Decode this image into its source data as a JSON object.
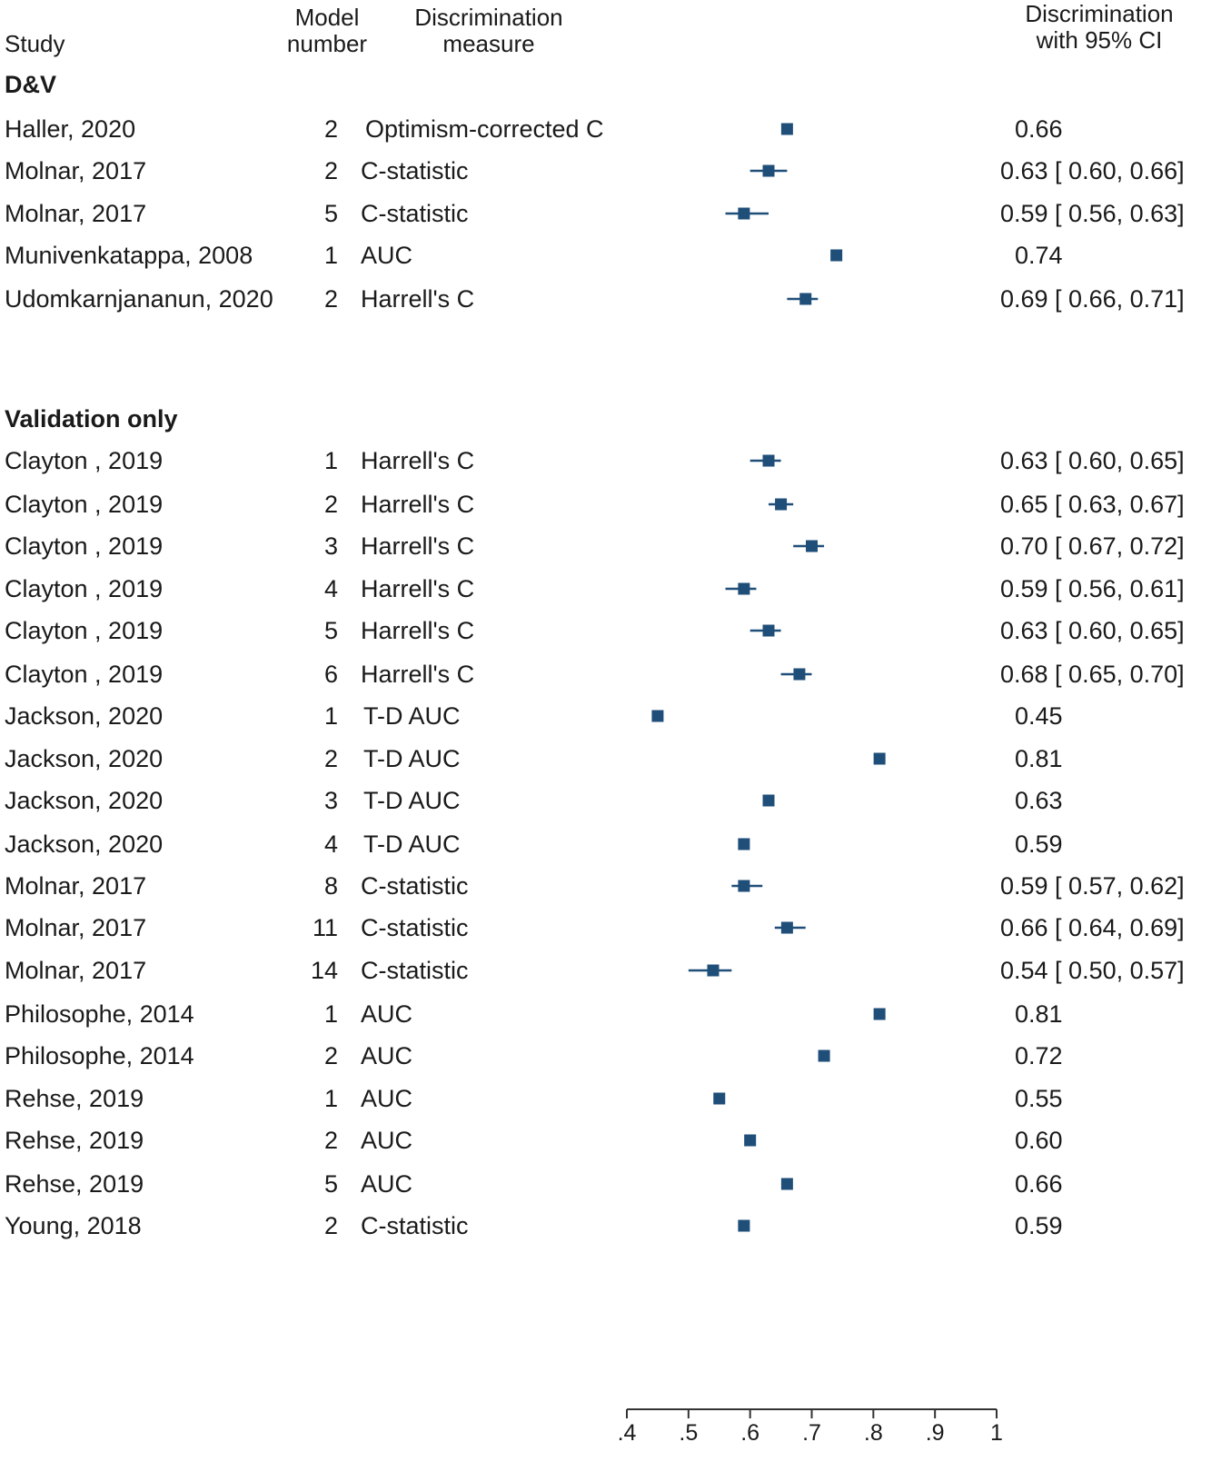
{
  "headers": {
    "study": "Study",
    "model_line1": "Model",
    "model_line2": "number",
    "measure_line1": "Discrimination",
    "measure_line2": "measure",
    "ci_line1": "Discrimination",
    "ci_line2": "with 95% CI"
  },
  "colors": {
    "marker": "#1f4e79",
    "text": "#1a1a1a",
    "axis": "#333333"
  },
  "chart_data": {
    "type": "forest",
    "xlim": [
      0.4,
      1.0
    ],
    "xticks": [
      0.4,
      0.5,
      0.6,
      0.7,
      0.8,
      0.9,
      1.0
    ],
    "xtick_labels": [
      ".4",
      ".5",
      ".6",
      ".7",
      ".8",
      ".9",
      "1"
    ],
    "groups": [
      {
        "label": "D&V",
        "rows": [
          {
            "study": "Haller, 2020",
            "model": "2",
            "measure": "Optimism-corrected C",
            "est": 0.66,
            "lo": null,
            "hi": null,
            "text": "0.66"
          },
          {
            "study": "Molnar, 2017",
            "model": "2",
            "measure": "C-statistic",
            "est": 0.63,
            "lo": 0.6,
            "hi": 0.66,
            "text": "0.63 [ 0.60,  0.66]"
          },
          {
            "study": "Molnar, 2017",
            "model": "5",
            "measure": "C-statistic",
            "est": 0.59,
            "lo": 0.56,
            "hi": 0.63,
            "text": "0.59 [ 0.56,  0.63]"
          },
          {
            "study": "Munivenkatappa, 2008",
            "model": "1",
            "measure": "AUC",
            "est": 0.74,
            "lo": null,
            "hi": null,
            "text": "0.74"
          },
          {
            "study": "Udomkarnjananun, 2020",
            "model": "2",
            "measure": "Harrell's C",
            "est": 0.69,
            "lo": 0.66,
            "hi": 0.71,
            "text": "0.69 [ 0.66,  0.71]"
          }
        ]
      },
      {
        "label": "Validation only",
        "rows": [
          {
            "study": "Clayton , 2019",
            "model": "1",
            "measure": "Harrell's C",
            "est": 0.63,
            "lo": 0.6,
            "hi": 0.65,
            "text": "0.63 [ 0.60,  0.65]"
          },
          {
            "study": "Clayton , 2019",
            "model": "2",
            "measure": "Harrell's C",
            "est": 0.65,
            "lo": 0.63,
            "hi": 0.67,
            "text": "0.65 [ 0.63,  0.67]"
          },
          {
            "study": "Clayton , 2019",
            "model": "3",
            "measure": "Harrell's C",
            "est": 0.7,
            "lo": 0.67,
            "hi": 0.72,
            "text": "0.70 [ 0.67,  0.72]"
          },
          {
            "study": "Clayton , 2019",
            "model": "4",
            "measure": "Harrell's C",
            "est": 0.59,
            "lo": 0.56,
            "hi": 0.61,
            "text": "0.59 [ 0.56,  0.61]"
          },
          {
            "study": "Clayton , 2019",
            "model": "5",
            "measure": "Harrell's C",
            "est": 0.63,
            "lo": 0.6,
            "hi": 0.65,
            "text": "0.63 [ 0.60,  0.65]"
          },
          {
            "study": "Clayton , 2019",
            "model": "6",
            "measure": "Harrell's C",
            "est": 0.68,
            "lo": 0.65,
            "hi": 0.7,
            "text": "0.68 [ 0.65,  0.70]"
          },
          {
            "study": "Jackson, 2020",
            "model": "1",
            "measure": "T-D AUC",
            "est": 0.45,
            "lo": null,
            "hi": null,
            "text": "0.45"
          },
          {
            "study": "Jackson, 2020",
            "model": "2",
            "measure": "T-D AUC",
            "est": 0.81,
            "lo": null,
            "hi": null,
            "text": "0.81"
          },
          {
            "study": "Jackson, 2020",
            "model": "3",
            "measure": "T-D AUC",
            "est": 0.63,
            "lo": null,
            "hi": null,
            "text": "0.63"
          },
          {
            "study": "Jackson, 2020",
            "model": "4",
            "measure": "T-D AUC",
            "est": 0.59,
            "lo": null,
            "hi": null,
            "text": "0.59"
          },
          {
            "study": "Molnar, 2017",
            "model": "8",
            "measure": "C-statistic",
            "est": 0.59,
            "lo": 0.57,
            "hi": 0.62,
            "text": "0.59 [ 0.57,  0.62]"
          },
          {
            "study": "Molnar, 2017",
            "model": "11",
            "measure": "C-statistic",
            "est": 0.66,
            "lo": 0.64,
            "hi": 0.69,
            "text": "0.66 [ 0.64,  0.69]"
          },
          {
            "study": "Molnar, 2017",
            "model": "14",
            "measure": "C-statistic",
            "est": 0.54,
            "lo": 0.5,
            "hi": 0.57,
            "text": "0.54 [ 0.50,  0.57]"
          },
          {
            "study": "Philosophe, 2014",
            "model": "1",
            "measure": "AUC",
            "est": 0.81,
            "lo": null,
            "hi": null,
            "text": "0.81"
          },
          {
            "study": "Philosophe, 2014",
            "model": "2",
            "measure": "AUC",
            "est": 0.72,
            "lo": null,
            "hi": null,
            "text": "0.72"
          },
          {
            "study": "Rehse, 2019",
            "model": "1",
            "measure": "AUC",
            "est": 0.55,
            "lo": null,
            "hi": null,
            "text": "0.55"
          },
          {
            "study": "Rehse, 2019",
            "model": "2",
            "measure": "AUC",
            "est": 0.6,
            "lo": null,
            "hi": null,
            "text": "0.60"
          },
          {
            "study": "Rehse, 2019",
            "model": "5",
            "measure": "AUC",
            "est": 0.66,
            "lo": null,
            "hi": null,
            "text": "0.66"
          },
          {
            "study": "Young, 2018",
            "model": "2",
            "measure": "C-statistic",
            "est": 0.59,
            "lo": null,
            "hi": null,
            "text": "0.59"
          }
        ]
      }
    ]
  }
}
